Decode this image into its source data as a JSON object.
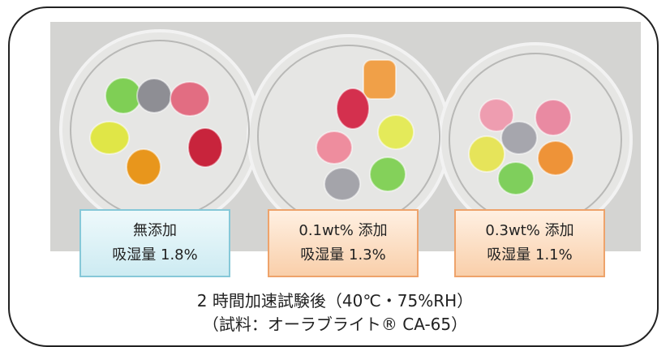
{
  "labels": [
    {
      "line1": "無添加",
      "line2": "吸湿量 1.8%"
    },
    {
      "line1": "0.1wt% 添加",
      "line2": "吸湿量 1.3%"
    },
    {
      "line1": "0.3wt% 添加",
      "line2": "吸湿量 1.1%"
    }
  ],
  "caption": {
    "line1": "2 時間加速試験後（40℃・75%RH）",
    "line2": "（試料：オーラブライト® CA-65）"
  }
}
